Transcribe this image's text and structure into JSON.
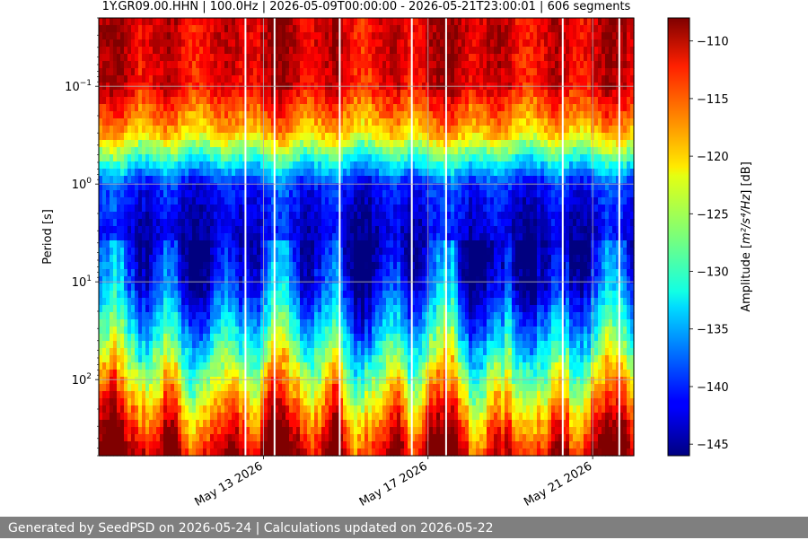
{
  "chart_data": {
    "type": "heatmap",
    "title": "1Y.GR09.00.HHN | 100.0Hz | 2026-05-09T00:00:00 - 2026-05-21T23:00:01 | 606 segments",
    "ylabel": "Period [s]",
    "y_scale": "log",
    "y_inverted": true,
    "ylim": [
      0.02,
      600
    ],
    "y_ticks": [
      {
        "value": 0.1,
        "base": "10",
        "exp": "−1"
      },
      {
        "value": 1,
        "base": "10",
        "exp": "0"
      },
      {
        "value": 10,
        "base": "10",
        "exp": "1"
      },
      {
        "value": 100,
        "base": "10",
        "exp": "2"
      }
    ],
    "x_range": [
      "2026-05-09T00:00:00",
      "2026-05-22T00:00:00"
    ],
    "x_ticks": [
      {
        "date": "2026-05-13",
        "label": "May 13 2026"
      },
      {
        "date": "2026-05-17",
        "label": "May 17 2026"
      },
      {
        "date": "2026-05-21",
        "label": "May 21 2026"
      }
    ],
    "grid": true,
    "colormap": "jet",
    "colorbar": {
      "label_prefix": "Amplitude [",
      "label_units": "m²/s⁴/Hz",
      "label_suffix": "] [dB]",
      "range": [
        -146,
        -108
      ],
      "ticks": [
        "−110",
        "−115",
        "−120",
        "−125",
        "−130",
        "−135",
        "−140",
        "−145"
      ],
      "tick_values": [
        -110,
        -115,
        -120,
        -125,
        -130,
        -135,
        -140,
        -145
      ]
    },
    "profile_by_band": {
      "description_periods_s": [
        0.02,
        0.04,
        0.1,
        0.3,
        1,
        3,
        10,
        30,
        100,
        300,
        600
      ],
      "typical_amplitude_db": [
        -111,
        -111,
        -112,
        -120,
        -140,
        -143,
        -140,
        -133,
        -123,
        -114,
        -109
      ]
    },
    "gaps": [
      "2026-05-12T13:00",
      "2026-05-13T06:00",
      "2026-05-14T20:00",
      "2026-05-16T14:00",
      "2026-05-17T10:00",
      "2026-05-20T06:00",
      "2026-05-21T15:00"
    ]
  },
  "footer": {
    "text": "Generated by SeedPSD on 2026-05-24 | Calculations updated on 2026-05-22"
  }
}
